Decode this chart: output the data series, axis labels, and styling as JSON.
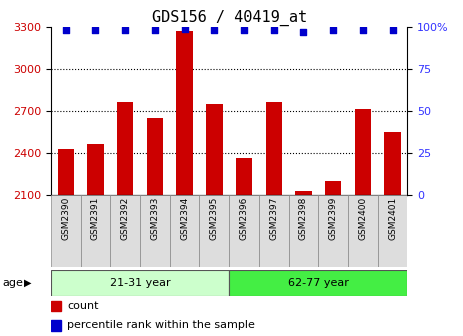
{
  "title": "GDS156 / 40419_at",
  "samples": [
    "GSM2390",
    "GSM2391",
    "GSM2392",
    "GSM2393",
    "GSM2394",
    "GSM2395",
    "GSM2396",
    "GSM2397",
    "GSM2398",
    "GSM2399",
    "GSM2400",
    "GSM2401"
  ],
  "bar_values": [
    2430,
    2460,
    2760,
    2650,
    3270,
    2750,
    2360,
    2760,
    2130,
    2200,
    2710,
    2550
  ],
  "percentile_values": [
    98,
    98,
    98,
    98,
    99,
    98,
    98,
    98,
    97,
    98,
    98,
    98
  ],
  "bar_color": "#cc0000",
  "dot_color": "#0000cc",
  "ylim_left": [
    2100,
    3300
  ],
  "ylim_right": [
    0,
    100
  ],
  "yticks_left": [
    2100,
    2400,
    2700,
    3000,
    3300
  ],
  "yticks_right": [
    0,
    25,
    50,
    75,
    100
  ],
  "group1_label": "21-31 year",
  "group2_label": "62-77 year",
  "group1_count": 6,
  "group2_count": 6,
  "group1_color": "#ccffcc",
  "group2_color": "#44ee44",
  "age_label": "age",
  "legend_bar_label": "count",
  "legend_dot_label": "percentile rank within the sample",
  "bar_label_color": "#cc0000",
  "pct_label_color": "#3333ff",
  "title_fontsize": 11,
  "tick_fontsize": 8,
  "sample_fontsize": 6.5,
  "legend_fontsize": 8,
  "bar_width": 0.55,
  "bg_color": "#ffffff"
}
